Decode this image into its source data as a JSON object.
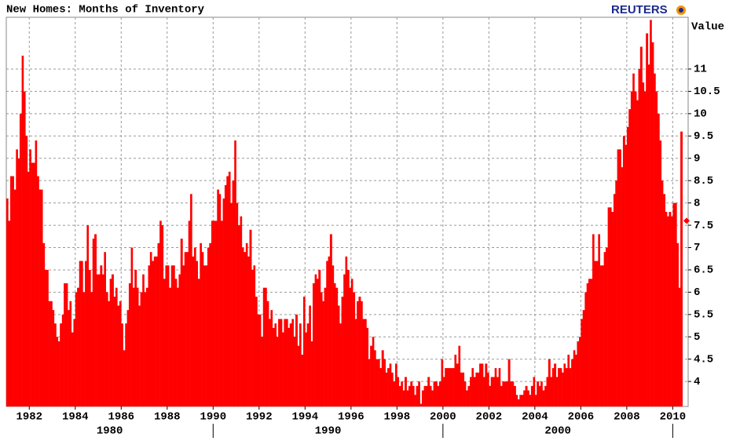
{
  "chart_data": {
    "type": "bar",
    "title": "New Homes: Months of Inventory",
    "source": "REUTERS",
    "y_axis_label": "Value",
    "color": "#ff0000",
    "grid": true,
    "last_marker": "diamond",
    "xlim": [
      1981,
      2010.67
    ],
    "ylim": [
      3.44,
      12.16
    ],
    "xticks": [
      1982,
      1984,
      1986,
      1988,
      1990,
      1992,
      1994,
      1996,
      1998,
      2000,
      2002,
      2004,
      2006,
      2008,
      2010
    ],
    "decades": [
      1980,
      1990,
      2000
    ],
    "yticks": [
      4,
      4.5,
      5,
      5.5,
      6,
      6.5,
      7,
      7.5,
      8,
      8.5,
      9,
      9.5,
      10,
      10.5,
      11
    ],
    "x": [
      1981,
      1981.08,
      1981.17,
      1981.25,
      1981.33,
      1981.42,
      1981.5,
      1981.58,
      1981.67,
      1981.75,
      1981.83,
      1981.92,
      1982,
      1982.08,
      1982.17,
      1982.25,
      1982.33,
      1982.42,
      1982.5,
      1982.58,
      1982.67,
      1982.75,
      1982.83,
      1982.92,
      1983,
      1983.08,
      1983.17,
      1983.25,
      1983.33,
      1983.42,
      1983.5,
      1983.58,
      1983.67,
      1983.75,
      1983.83,
      1983.92,
      1984,
      1984.08,
      1984.17,
      1984.25,
      1984.33,
      1984.42,
      1984.5,
      1984.58,
      1984.67,
      1984.75,
      1984.83,
      1984.92,
      1985,
      1985.08,
      1985.17,
      1985.25,
      1985.33,
      1985.42,
      1985.5,
      1985.58,
      1985.67,
      1985.75,
      1985.83,
      1985.92,
      1986,
      1986.08,
      1986.17,
      1986.25,
      1986.33,
      1986.42,
      1986.5,
      1986.58,
      1986.67,
      1986.75,
      1986.83,
      1986.92,
      1987,
      1987.08,
      1987.17,
      1987.25,
      1987.33,
      1987.42,
      1987.5,
      1987.58,
      1987.67,
      1987.75,
      1987.83,
      1987.92,
      1988,
      1988.08,
      1988.17,
      1988.25,
      1988.33,
      1988.42,
      1988.5,
      1988.58,
      1988.67,
      1988.75,
      1988.83,
      1988.92,
      1989,
      1989.08,
      1989.17,
      1989.25,
      1989.33,
      1989.42,
      1989.5,
      1989.58,
      1989.67,
      1989.75,
      1989.83,
      1989.92,
      1990,
      1990.08,
      1990.17,
      1990.25,
      1990.33,
      1990.42,
      1990.5,
      1990.58,
      1990.67,
      1990.75,
      1990.83,
      1990.92,
      1991,
      1991.08,
      1991.17,
      1991.25,
      1991.33,
      1991.42,
      1991.5,
      1991.58,
      1991.67,
      1991.75,
      1991.83,
      1991.92,
      1992,
      1992.08,
      1992.17,
      1992.25,
      1992.33,
      1992.42,
      1992.5,
      1992.58,
      1992.67,
      1992.75,
      1992.83,
      1992.92,
      1993,
      1993.08,
      1993.17,
      1993.25,
      1993.33,
      1993.42,
      1993.5,
      1993.58,
      1993.67,
      1993.75,
      1993.83,
      1993.92,
      1994,
      1994.08,
      1994.17,
      1994.25,
      1994.33,
      1994.42,
      1994.5,
      1994.58,
      1994.67,
      1994.75,
      1994.83,
      1994.92,
      1995,
      1995.08,
      1995.17,
      1995.25,
      1995.33,
      1995.42,
      1995.5,
      1995.58,
      1995.67,
      1995.75,
      1995.83,
      1995.92,
      1996,
      1996.08,
      1996.17,
      1996.25,
      1996.33,
      1996.42,
      1996.5,
      1996.58,
      1996.67,
      1996.75,
      1996.83,
      1996.92,
      1997,
      1997.08,
      1997.17,
      1997.25,
      1997.33,
      1997.42,
      1997.5,
      1997.58,
      1997.67,
      1997.75,
      1997.83,
      1997.92,
      1998,
      1998.08,
      1998.17,
      1998.25,
      1998.33,
      1998.42,
      1998.5,
      1998.58,
      1998.67,
      1998.75,
      1998.83,
      1998.92,
      1999,
      1999.08,
      1999.17,
      1999.25,
      1999.33,
      1999.42,
      1999.5,
      1999.58,
      1999.67,
      1999.75,
      1999.83,
      1999.92,
      2000,
      2000.08,
      2000.17,
      2000.25,
      2000.33,
      2000.42,
      2000.5,
      2000.58,
      2000.67,
      2000.75,
      2000.83,
      2000.92,
      2001,
      2001.08,
      2001.17,
      2001.25,
      2001.33,
      2001.42,
      2001.5,
      2001.58,
      2001.67,
      2001.75,
      2001.83,
      2001.92,
      2002,
      2002.08,
      2002.17,
      2002.25,
      2002.33,
      2002.42,
      2002.5,
      2002.58,
      2002.67,
      2002.75,
      2002.83,
      2002.92,
      2003,
      2003.08,
      2003.17,
      2003.25,
      2003.33,
      2003.42,
      2003.5,
      2003.58,
      2003.67,
      2003.75,
      2003.83,
      2003.92,
      2004,
      2004.08,
      2004.17,
      2004.25,
      2004.33,
      2004.42,
      2004.5,
      2004.58,
      2004.67,
      2004.75,
      2004.83,
      2004.92,
      2005,
      2005.08,
      2005.17,
      2005.25,
      2005.33,
      2005.42,
      2005.5,
      2005.58,
      2005.67,
      2005.75,
      2005.83,
      2005.92,
      2006,
      2006.08,
      2006.17,
      2006.25,
      2006.33,
      2006.42,
      2006.5,
      2006.58,
      2006.67,
      2006.75,
      2006.83,
      2006.92,
      2007,
      2007.08,
      2007.17,
      2007.25,
      2007.33,
      2007.42,
      2007.5,
      2007.58,
      2007.67,
      2007.75,
      2007.83,
      2007.92,
      2008,
      2008.08,
      2008.17,
      2008.25,
      2008.33,
      2008.42,
      2008.5,
      2008.58,
      2008.67,
      2008.75,
      2008.83,
      2008.92,
      2009,
      2009.08,
      2009.17,
      2009.25,
      2009.33,
      2009.42,
      2009.5,
      2009.58,
      2009.67,
      2009.75,
      2009.83,
      2009.92,
      2010,
      2010.08,
      2010.17,
      2010.25,
      2010.33,
      2010.42
    ],
    "values": [
      8.1,
      7.6,
      8.6,
      8.6,
      8.3,
      9.2,
      9.0,
      10.0,
      11.3,
      10.5,
      9.5,
      8.7,
      9.2,
      8.9,
      8.9,
      9.4,
      8.6,
      8.3,
      8.3,
      7.1,
      6.5,
      6.5,
      5.8,
      5.8,
      5.6,
      5.3,
      5.0,
      4.9,
      5.3,
      5.5,
      6.2,
      6.2,
      5.6,
      5.8,
      5.1,
      5.4,
      6.0,
      6.1,
      6.7,
      6.7,
      6.0,
      6.7,
      7.5,
      6.5,
      6.0,
      7.2,
      7.3,
      6.4,
      6.4,
      6.6,
      6.4,
      6.9,
      6.0,
      5.8,
      6.3,
      6.4,
      5.9,
      6.1,
      5.7,
      5.8,
      5.3,
      4.7,
      5.3,
      5.6,
      6.2,
      7.0,
      6.1,
      6.5,
      6.1,
      5.7,
      6.0,
      6.4,
      6.0,
      6.1,
      6.6,
      6.9,
      6.7,
      6.8,
      6.8,
      7.1,
      7.6,
      7.5,
      6.3,
      6.6,
      6.6,
      6.1,
      6.6,
      6.6,
      6.3,
      6.1,
      6.4,
      7.2,
      6.6,
      6.9,
      6.9,
      7.6,
      8.2,
      6.8,
      7.0,
      6.7,
      6.3,
      7.1,
      6.9,
      6.6,
      6.6,
      7.0,
      7.1,
      7.6,
      7.6,
      7.6,
      8.3,
      8.2,
      7.6,
      8.1,
      8.4,
      8.6,
      8.7,
      8.0,
      8.5,
      9.4,
      8.0,
      7.5,
      7.7,
      7.0,
      6.9,
      7.1,
      6.8,
      7.4,
      6.5,
      6.6,
      5.9,
      5.5,
      5.5,
      5.0,
      6.1,
      6.1,
      5.8,
      5.4,
      5.6,
      5.2,
      5.3,
      5.0,
      5.4,
      5.4,
      5.1,
      5.4,
      5.4,
      5.2,
      5.3,
      5.4,
      5.0,
      5.5,
      4.8,
      5.3,
      4.6,
      5.9,
      5.1,
      5.3,
      5.7,
      4.9,
      6.2,
      6.4,
      6.3,
      6.5,
      6.0,
      5.8,
      6.1,
      6.7,
      6.8,
      7.3,
      6.6,
      6.2,
      6.1,
      5.7,
      5.3,
      5.9,
      6.4,
      6.8,
      6.5,
      6.1,
      6.3,
      6.0,
      5.4,
      5.8,
      5.9,
      5.8,
      5.4,
      5.4,
      5.2,
      4.5,
      4.8,
      5.0,
      4.7,
      4.5,
      4.5,
      4.3,
      4.7,
      4.5,
      4.2,
      4.3,
      4.4,
      4.2,
      4.0,
      4.4,
      4.1,
      3.9,
      4.0,
      3.8,
      4.1,
      3.8,
      3.9,
      4.0,
      3.9,
      3.7,
      3.9,
      4.0,
      3.5,
      3.8,
      3.9,
      3.9,
      4.1,
      3.9,
      3.8,
      4.0,
      4.0,
      3.9,
      4.0,
      4.5,
      4.1,
      4.3,
      4.3,
      4.3,
      4.3,
      4.3,
      4.6,
      4.4,
      4.8,
      4.2,
      4.2,
      4.0,
      3.8,
      3.9,
      4.1,
      4.3,
      4.1,
      4.2,
      4.2,
      4.4,
      4.4,
      4.1,
      4.4,
      4.2,
      3.9,
      4.1,
      4.1,
      4.3,
      4.1,
      4.3,
      3.9,
      4.0,
      4.0,
      4.0,
      4.5,
      4.0,
      4.0,
      3.9,
      3.7,
      3.6,
      3.7,
      3.7,
      3.8,
      3.9,
      3.8,
      3.7,
      3.9,
      4.1,
      3.7,
      4.0,
      3.9,
      4.0,
      3.8,
      3.9,
      4.1,
      4.5,
      4.1,
      4.3,
      4.4,
      4.1,
      4.3,
      4.3,
      4.2,
      4.4,
      4.3,
      4.6,
      4.3,
      4.5,
      4.7,
      4.6,
      4.9,
      5.0,
      5.4,
      5.6,
      6.0,
      6.2,
      6.3,
      6.3,
      7.3,
      6.7,
      6.7,
      7.3,
      6.6,
      6.6,
      6.9,
      7.0,
      7.9,
      7.9,
      7.8,
      8.2,
      8.5,
      9.2,
      9.2,
      8.8,
      9.5,
      9.3,
      9.7,
      10.1,
      10.5,
      10.9,
      10.5,
      10.3,
      11.0,
      11.5,
      10.7,
      10.5,
      11.8,
      11.1,
      12.1,
      11.6,
      10.9,
      10.5,
      10.0,
      9.4,
      8.5,
      8.2,
      7.8,
      7.7,
      7.8,
      7.7,
      8.0,
      8.0,
      7.1,
      6.1,
      9.6,
      7.6
    ]
  }
}
